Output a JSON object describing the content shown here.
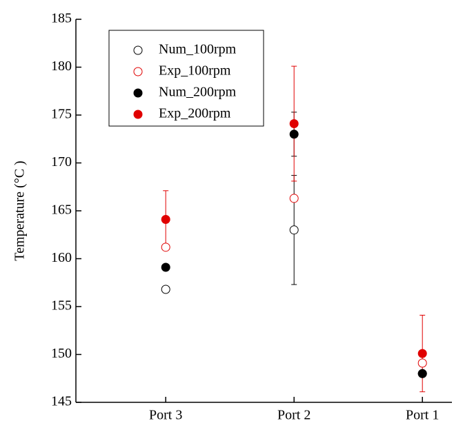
{
  "chart_data": {
    "type": "scatter",
    "ylabel": "Temperature (°C )",
    "categories": [
      "Port 3",
      "Port 2",
      "Port 1"
    ],
    "ylim": [
      145,
      185
    ],
    "yticks": [
      145,
      150,
      155,
      160,
      165,
      170,
      175,
      180,
      185
    ],
    "series": [
      {
        "name": "Num_100rpm",
        "color": "#000000",
        "filled": false,
        "values": [
          156.8,
          163.0,
          148.0
        ],
        "errors": [
          null,
          5.7,
          null
        ]
      },
      {
        "name": "Exp_100rpm",
        "color": "#e00000",
        "filled": false,
        "values": [
          161.2,
          166.3,
          149.1
        ],
        "errors": [
          null,
          null,
          null
        ]
      },
      {
        "name": "Num_200rpm",
        "color": "#000000",
        "filled": true,
        "values": [
          159.1,
          173.0,
          148.0
        ],
        "errors": [
          null,
          2.3,
          null
        ]
      },
      {
        "name": "Exp_200rpm",
        "color": "#e00000",
        "filled": true,
        "values": [
          164.1,
          174.1,
          150.1
        ],
        "errors": [
          3.0,
          6.0,
          4.0
        ]
      }
    ]
  }
}
